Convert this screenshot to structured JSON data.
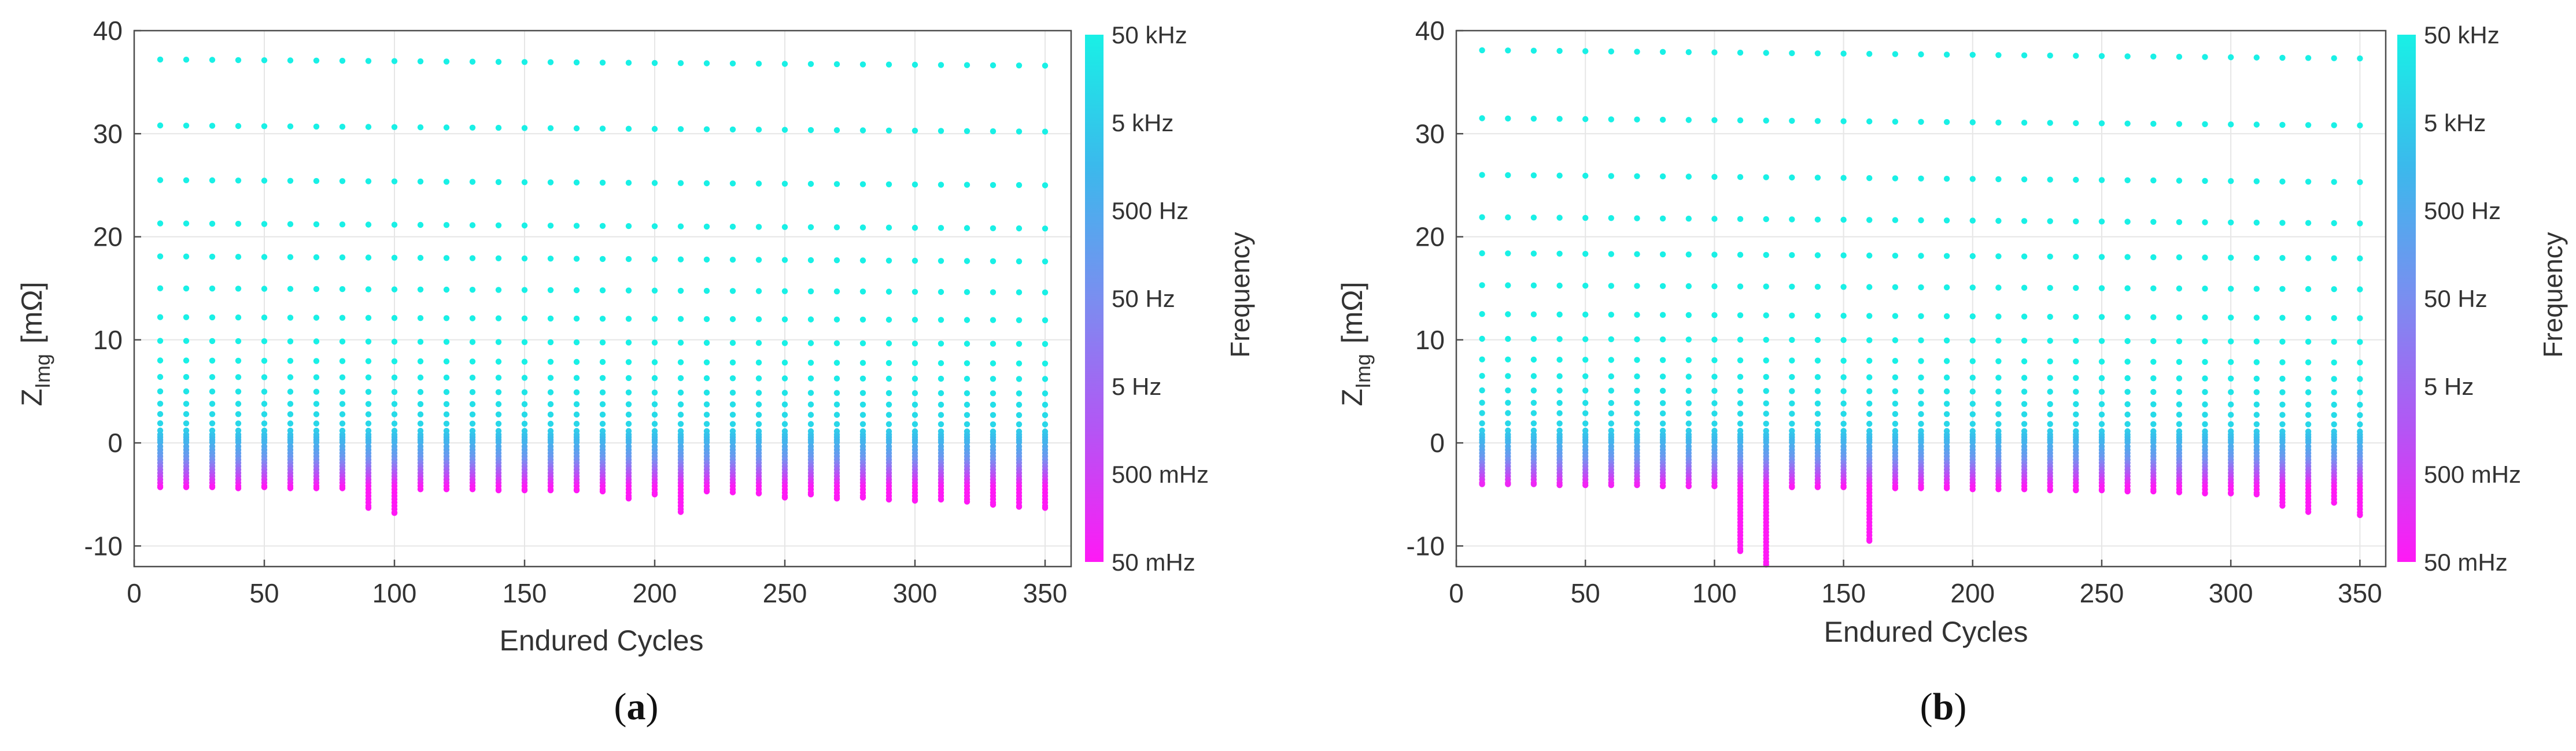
{
  "chart_data": [
    {
      "type": "scatter",
      "panel_label": "a",
      "xlabel": "Endured Cycles",
      "ylabel": "Z",
      "ylabel_sub": "Img",
      "ylabel_unit": "[mΩ]",
      "xlim": [
        0,
        360
      ],
      "ylim": [
        -12,
        40
      ],
      "xticks": [
        0,
        50,
        100,
        150,
        200,
        250,
        300,
        350
      ],
      "yticks": [
        -10,
        0,
        10,
        20,
        30,
        40
      ],
      "grid": true,
      "colorbar": {
        "label": "Frequency",
        "ticks": [
          "50 kHz",
          "5 kHz",
          "500 Hz",
          "50 Hz",
          "5 Hz",
          "500 mHz",
          "50 mHz"
        ],
        "colors": [
          "#19f0e6",
          "#3bb9ec",
          "#7a8ef0",
          "#b455f4",
          "#ff19f5"
        ]
      },
      "x": [
        10,
        20,
        30,
        40,
        50,
        60,
        70,
        80,
        90,
        100,
        110,
        120,
        130,
        140,
        150,
        160,
        170,
        180,
        190,
        200,
        210,
        220,
        230,
        240,
        250,
        260,
        270,
        280,
        290,
        300,
        310,
        320,
        330,
        340,
        350
      ],
      "high_freq_levels": [
        {
          "start": 37.2,
          "end": 36.6
        },
        {
          "start": 30.8,
          "end": 30.2
        },
        {
          "start": 25.5,
          "end": 25.0
        },
        {
          "start": 21.3,
          "end": 20.8
        },
        {
          "start": 18.1,
          "end": 17.6
        },
        {
          "start": 15.0,
          "end": 14.6
        },
        {
          "start": 12.2,
          "end": 11.9
        },
        {
          "start": 9.9,
          "end": 9.6
        },
        {
          "start": 8.0,
          "end": 7.7
        },
        {
          "start": 6.4,
          "end": 6.2
        },
        {
          "start": 5.0,
          "end": 4.8
        },
        {
          "start": 3.8,
          "end": 3.7
        },
        {
          "start": 2.8,
          "end": 2.7
        },
        {
          "start": 1.9,
          "end": 1.8
        },
        {
          "start": 1.2,
          "end": 1.1
        }
      ],
      "min_values": [
        -4.3,
        -4.3,
        -4.3,
        -4.4,
        -4.3,
        -4.4,
        -4.4,
        -4.4,
        -6.3,
        -6.8,
        -4.5,
        -4.5,
        -4.5,
        -4.6,
        -4.6,
        -4.6,
        -4.6,
        -4.7,
        -5.4,
        -5.0,
        -6.7,
        -4.7,
        -4.8,
        -4.9,
        -5.3,
        -5.0,
        -5.4,
        -5.3,
        -5.5,
        -5.6,
        -5.5,
        -5.7,
        -6.0,
        -6.2,
        -6.3
      ]
    },
    {
      "type": "scatter",
      "panel_label": "b",
      "xlabel": "Endured Cycles",
      "ylabel": "Z",
      "ylabel_sub": "Img",
      "ylabel_unit": "[mΩ]",
      "xlim": [
        0,
        360
      ],
      "ylim": [
        -12,
        40
      ],
      "xticks": [
        0,
        50,
        100,
        150,
        200,
        250,
        300,
        350
      ],
      "yticks": [
        -10,
        0,
        10,
        20,
        30,
        40
      ],
      "grid": true,
      "colorbar": {
        "label": "Frequency",
        "ticks": [
          "50 kHz",
          "5 kHz",
          "500 Hz",
          "50 Hz",
          "5 Hz",
          "500 mHz",
          "50 mHz"
        ],
        "colors": [
          "#19f0e6",
          "#3bb9ec",
          "#7a8ef0",
          "#b455f4",
          "#ff19f5"
        ]
      },
      "x": [
        10,
        20,
        30,
        40,
        50,
        60,
        70,
        80,
        90,
        100,
        110,
        120,
        130,
        140,
        150,
        160,
        170,
        180,
        190,
        200,
        210,
        220,
        230,
        240,
        250,
        260,
        270,
        280,
        290,
        300,
        310,
        320,
        330,
        340,
        350
      ],
      "high_freq_levels": [
        {
          "start": 38.1,
          "end": 37.3
        },
        {
          "start": 31.5,
          "end": 30.8
        },
        {
          "start": 26.0,
          "end": 25.3
        },
        {
          "start": 21.9,
          "end": 21.3
        },
        {
          "start": 18.4,
          "end": 17.9
        },
        {
          "start": 15.3,
          "end": 14.9
        },
        {
          "start": 12.5,
          "end": 12.1
        },
        {
          "start": 10.1,
          "end": 9.8
        },
        {
          "start": 8.1,
          "end": 7.8
        },
        {
          "start": 6.5,
          "end": 6.2
        },
        {
          "start": 5.1,
          "end": 4.9
        },
        {
          "start": 3.9,
          "end": 3.7
        },
        {
          "start": 2.9,
          "end": 2.7
        },
        {
          "start": 1.9,
          "end": 1.8
        },
        {
          "start": 1.2,
          "end": 1.1
        }
      ],
      "min_values": [
        -4.0,
        -4.0,
        -4.0,
        -4.1,
        -4.1,
        -4.1,
        -4.1,
        -4.2,
        -4.2,
        -4.2,
        -10.5,
        -11.8,
        -4.3,
        -4.3,
        -4.3,
        -9.5,
        -4.4,
        -4.4,
        -4.4,
        -4.5,
        -4.5,
        -4.5,
        -4.6,
        -4.6,
        -4.6,
        -4.7,
        -4.7,
        -4.8,
        -4.9,
        -4.9,
        -5.0,
        -6.1,
        -6.7,
        -5.8,
        -7.0
      ]
    }
  ]
}
